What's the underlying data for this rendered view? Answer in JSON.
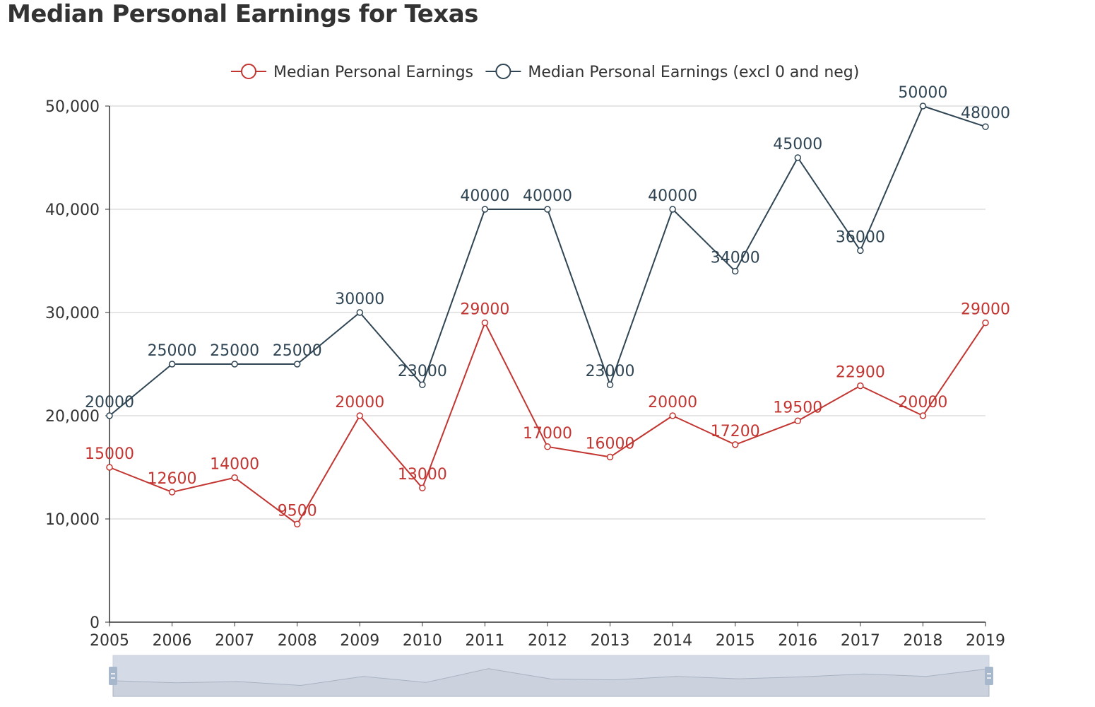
{
  "title": "Median Personal Earnings for Texas",
  "colors": {
    "series_1": "#c23531",
    "series_2": "#2f4554",
    "axis": "#333333",
    "grid": "#cccccc",
    "zoom_fill": "#d5dbe6",
    "zoom_handle": "#a7b7cc"
  },
  "chart_data": {
    "type": "line",
    "title": "Median Personal Earnings for Texas",
    "x": [
      "2005",
      "2006",
      "2007",
      "2008",
      "2009",
      "2010",
      "2011",
      "2012",
      "2013",
      "2014",
      "2015",
      "2016",
      "2017",
      "2018",
      "2019"
    ],
    "series": [
      {
        "name": "Median Personal Earnings",
        "values": [
          15000,
          12600,
          14000,
          9500,
          20000,
          13000,
          29000,
          17000,
          16000,
          20000,
          17200,
          19500,
          22900,
          20000,
          29000
        ]
      },
      {
        "name": "Median Personal Earnings (excl 0 and neg)",
        "values": [
          20000,
          25000,
          25000,
          25000,
          30000,
          23000,
          40000,
          40000,
          23000,
          40000,
          34000,
          45000,
          36000,
          50000,
          48000
        ]
      }
    ],
    "yticks": [
      "0",
      "10,000",
      "20,000",
      "30,000",
      "40,000",
      "50,000"
    ],
    "ylim": [
      0,
      50000
    ],
    "grid": true,
    "legend": "top-center",
    "data_labels": true,
    "data_zoom": true
  }
}
